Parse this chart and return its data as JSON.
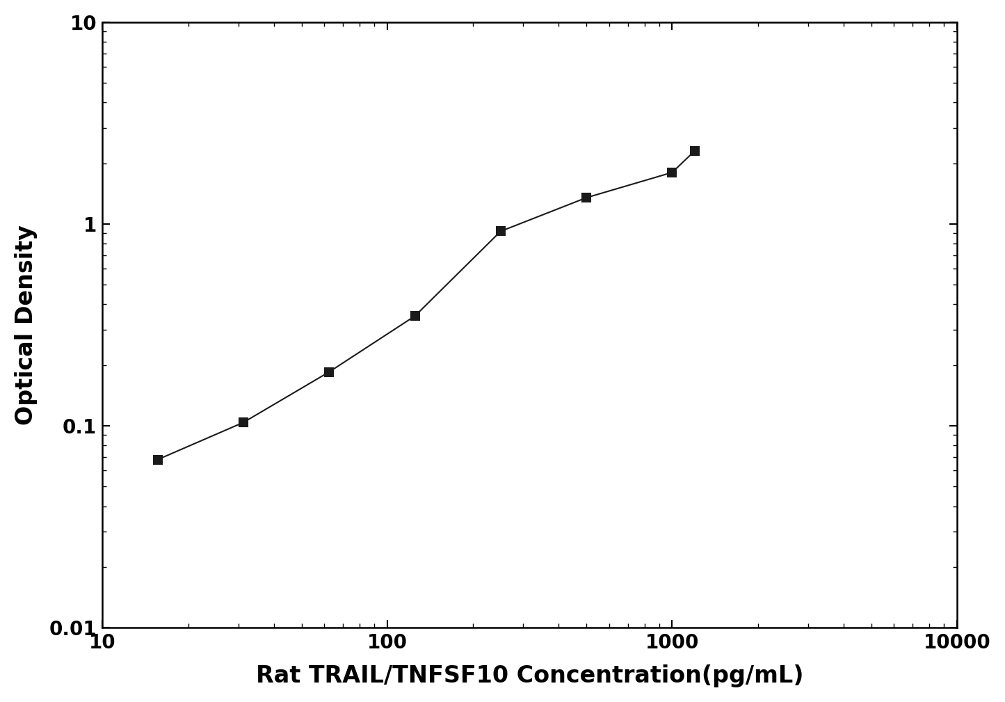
{
  "x": [
    15.6,
    31.25,
    62.5,
    125,
    250,
    500,
    1000,
    1200
  ],
  "y": [
    0.068,
    0.104,
    0.185,
    0.35,
    0.92,
    1.35,
    1.8,
    2.3
  ],
  "xlabel": "Rat TRAIL/TNFSF10 Concentration(pg/mL)",
  "ylabel": "Optical Density",
  "xlim": [
    10,
    10000
  ],
  "ylim": [
    0.01,
    10
  ],
  "title": "",
  "line_color": "#1a1a1a",
  "marker_color": "#1a1a1a",
  "marker": "s",
  "marker_size": 9,
  "line_width": 1.5,
  "background_color": "#ffffff",
  "xlabel_fontsize": 24,
  "ylabel_fontsize": 24,
  "tick_fontsize": 20,
  "tick_label_weight": "bold"
}
